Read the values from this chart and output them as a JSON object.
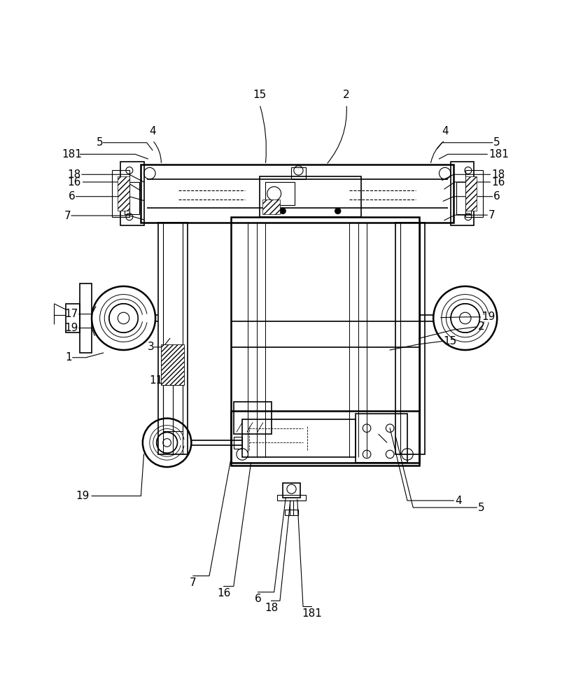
{
  "bg_color": "#ffffff",
  "line_color": "#000000",
  "fig_width": 8.33,
  "fig_height": 10.0,
  "dpi": 100
}
